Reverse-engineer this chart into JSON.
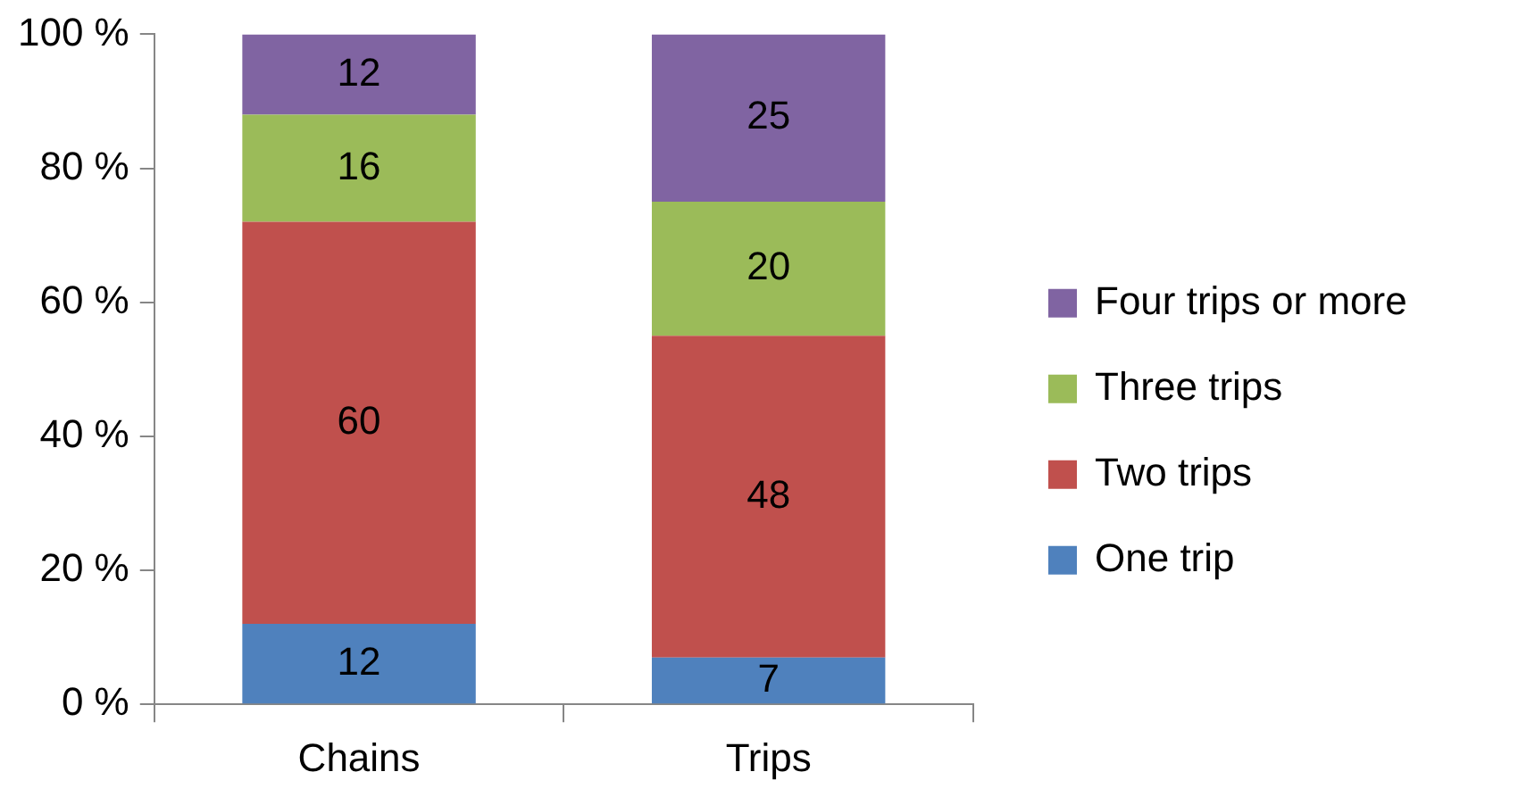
{
  "chart_data": {
    "type": "bar",
    "stacked": true,
    "categories": [
      "Chains",
      "Trips"
    ],
    "series": [
      {
        "name": "One trip",
        "color": "#4f81bd",
        "values": [
          12,
          7
        ]
      },
      {
        "name": "Two trips",
        "color": "#c0504d",
        "values": [
          60,
          48
        ]
      },
      {
        "name": "Three trips",
        "color": "#9bbb59",
        "values": [
          16,
          20
        ]
      },
      {
        "name": "Four trips or more",
        "color": "#8064a2",
        "values": [
          12,
          25
        ]
      }
    ],
    "ylim": [
      0,
      100
    ],
    "yticks": [
      {
        "value": 0,
        "label": "0 %"
      },
      {
        "value": 20,
        "label": "20 %"
      },
      {
        "value": 40,
        "label": "40 %"
      },
      {
        "value": 60,
        "label": "60 %"
      },
      {
        "value": 80,
        "label": "80 %"
      },
      {
        "value": 100,
        "label": "100 %"
      }
    ],
    "legend": "right",
    "data_labels": true
  }
}
